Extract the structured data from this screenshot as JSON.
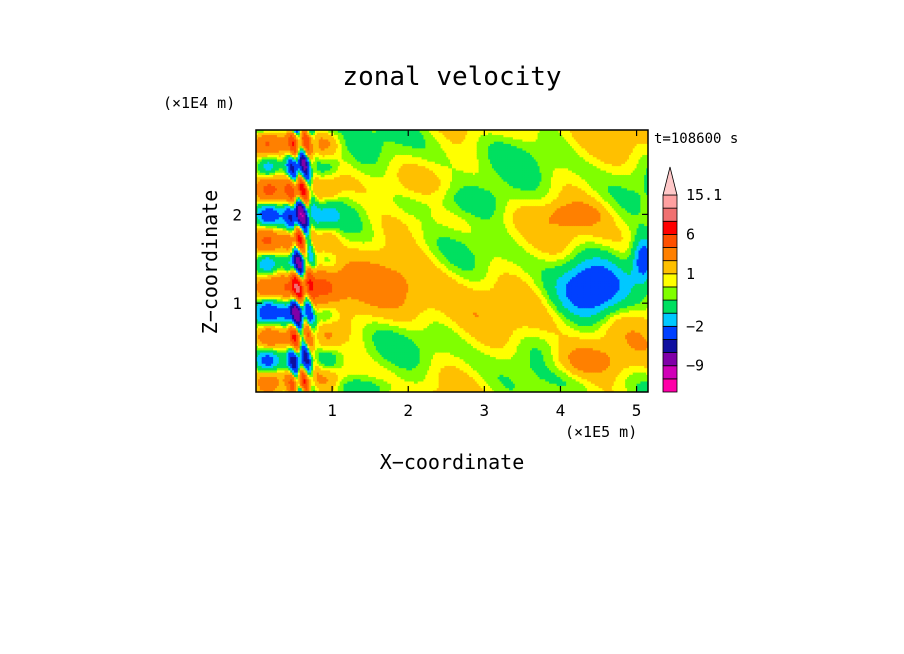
{
  "chart_data": {
    "type": "heatmap",
    "title": "zonal velocity",
    "xlabel": "X−coordinate",
    "ylabel": "Z−coordinate",
    "x_unit": "(×1E5 m)",
    "y_unit": "(×1E4 m)",
    "annotation": "t=108600 s",
    "xlim": [
      0,
      5.15
    ],
    "ylim": [
      0,
      2.95
    ],
    "x_ticks": [
      1,
      2,
      3,
      4,
      5
    ],
    "y_ticks": [
      1,
      2
    ],
    "colorbar": {
      "labels": [
        {
          "value": 15.1,
          "text": "15.1"
        },
        {
          "value": 6,
          "text": "6"
        },
        {
          "value": 1,
          "text": "1"
        },
        {
          "value": -2,
          "text": "−2"
        },
        {
          "value": -9,
          "text": "−9"
        }
      ],
      "levels": [
        {
          "min": -20,
          "max": -12,
          "color": "#ff00a8"
        },
        {
          "min": -12,
          "max": -9,
          "color": "#d000b8"
        },
        {
          "min": -9,
          "max": -6,
          "color": "#8000a8"
        },
        {
          "min": -6,
          "max": -4,
          "color": "#1010a0"
        },
        {
          "min": -4,
          "max": -2,
          "color": "#0040ff"
        },
        {
          "min": -2,
          "max": -1,
          "color": "#00c8ff"
        },
        {
          "min": -1,
          "max": 0,
          "color": "#00e060"
        },
        {
          "min": 0,
          "max": 0.5,
          "color": "#80ff00"
        },
        {
          "min": 0.5,
          "max": 1,
          "color": "#ffff00"
        },
        {
          "min": 1,
          "max": 2,
          "color": "#ffc000"
        },
        {
          "min": 2,
          "max": 4,
          "color": "#ff8000"
        },
        {
          "min": 4,
          "max": 6,
          "color": "#ff5000"
        },
        {
          "min": 6,
          "max": 9,
          "color": "#ff0000"
        },
        {
          "min": 9,
          "max": 12,
          "color": "#f07070"
        },
        {
          "min": 12,
          "max": 15.1,
          "color": "#ffa0a0"
        },
        {
          "min": 15.1,
          "max": 20,
          "color": "#ffc8c8"
        }
      ],
      "extend": "max"
    }
  }
}
